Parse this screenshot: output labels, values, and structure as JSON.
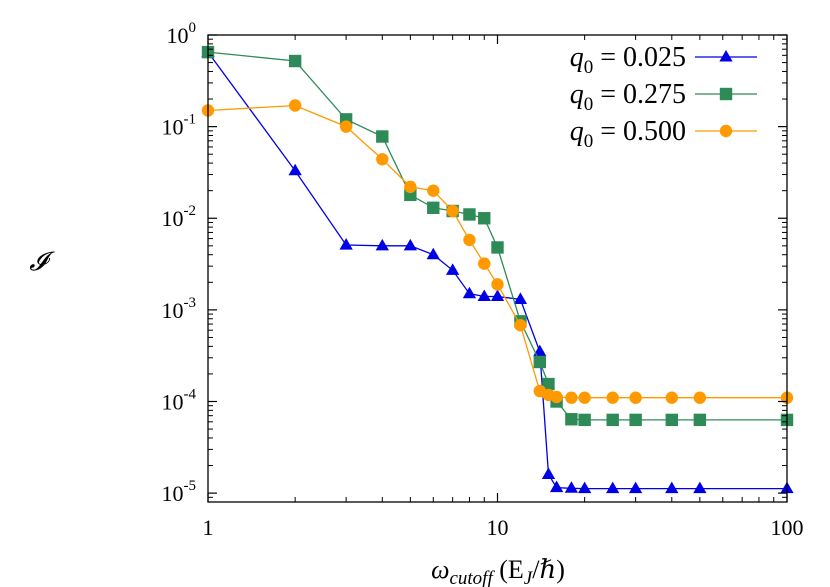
{
  "chart_data": {
    "type": "line",
    "xscale": "log",
    "yscale": "log",
    "xlim": [
      1,
      100
    ],
    "ylim": [
      8e-06,
      1
    ],
    "x_ticks": [
      {
        "value": 1,
        "label": "1"
      },
      {
        "value": 10,
        "label": "10"
      },
      {
        "value": 100,
        "label": "100"
      }
    ],
    "y_ticks": [
      {
        "value": 1,
        "base": "10",
        "exp": "0"
      },
      {
        "value": 0.1,
        "base": "10",
        "exp": "-1"
      },
      {
        "value": 0.01,
        "base": "10",
        "exp": "-2"
      },
      {
        "value": 0.001,
        "base": "10",
        "exp": "-3"
      },
      {
        "value": 0.0001,
        "base": "10",
        "exp": "-4"
      },
      {
        "value": 1e-05,
        "base": "10",
        "exp": "-5"
      }
    ],
    "xlabel": {
      "symbol": "ω",
      "subscript": "cutoff",
      "units": "(E",
      "units_sub": "J",
      "units_tail": "/ℏ)"
    },
    "ylabel": "𝓘",
    "legend_position": "top-right",
    "grid": false,
    "series": [
      {
        "name": "q",
        "name_sub": "0",
        "name_value": " = 0.025",
        "color": "#0000e6",
        "marker": "triangle",
        "points": [
          [
            1,
            0.65
          ],
          [
            2,
            0.033
          ],
          [
            3,
            0.0051
          ],
          [
            4,
            0.005
          ],
          [
            5,
            0.005
          ],
          [
            6,
            0.004
          ],
          [
            7,
            0.0027
          ],
          [
            8,
            0.0015
          ],
          [
            9,
            0.0014
          ],
          [
            10,
            0.0014
          ],
          [
            12,
            0.0013
          ],
          [
            14,
            0.00035
          ],
          [
            15,
            1.6e-05
          ],
          [
            16,
            1.15e-05
          ],
          [
            18,
            1.13e-05
          ],
          [
            20,
            1.12e-05
          ],
          [
            25,
            1.12e-05
          ],
          [
            30,
            1.12e-05
          ],
          [
            40,
            1.12e-05
          ],
          [
            50,
            1.12e-05
          ],
          [
            100,
            1.12e-05
          ]
        ]
      },
      {
        "name": "q",
        "name_sub": "0",
        "name_value": " = 0.275",
        "color": "#2e8b57",
        "marker": "square",
        "points": [
          [
            1,
            0.65
          ],
          [
            2,
            0.52
          ],
          [
            3,
            0.12
          ],
          [
            4,
            0.078
          ],
          [
            5,
            0.018
          ],
          [
            6,
            0.013
          ],
          [
            7,
            0.012
          ],
          [
            8,
            0.011
          ],
          [
            9,
            0.01
          ],
          [
            10,
            0.0048
          ],
          [
            12,
            0.00075
          ],
          [
            14,
            0.00027
          ],
          [
            15,
            0.000155
          ],
          [
            16,
            0.0001
          ],
          [
            18,
            6.4e-05
          ],
          [
            20,
            6.3e-05
          ],
          [
            25,
            6.3e-05
          ],
          [
            30,
            6.3e-05
          ],
          [
            40,
            6.3e-05
          ],
          [
            50,
            6.3e-05
          ],
          [
            100,
            6.3e-05
          ]
        ]
      },
      {
        "name": "q",
        "name_sub": "0",
        "name_value": " = 0.500",
        "color": "#ff9900",
        "marker": "circle",
        "points": [
          [
            1,
            0.15
          ],
          [
            2,
            0.17
          ],
          [
            3,
            0.1
          ],
          [
            4,
            0.044
          ],
          [
            5,
            0.022
          ],
          [
            6,
            0.02
          ],
          [
            7,
            0.012
          ],
          [
            8,
            0.0058
          ],
          [
            9,
            0.0032
          ],
          [
            10,
            0.0019
          ],
          [
            12,
            0.00068
          ],
          [
            14,
            0.00013
          ],
          [
            15,
            0.000118
          ],
          [
            16,
            0.000112
          ],
          [
            18,
            0.00011
          ],
          [
            20,
            0.00011
          ],
          [
            25,
            0.00011
          ],
          [
            30,
            0.00011
          ],
          [
            40,
            0.00011
          ],
          [
            50,
            0.00011
          ],
          [
            100,
            0.00011
          ]
        ]
      }
    ]
  }
}
